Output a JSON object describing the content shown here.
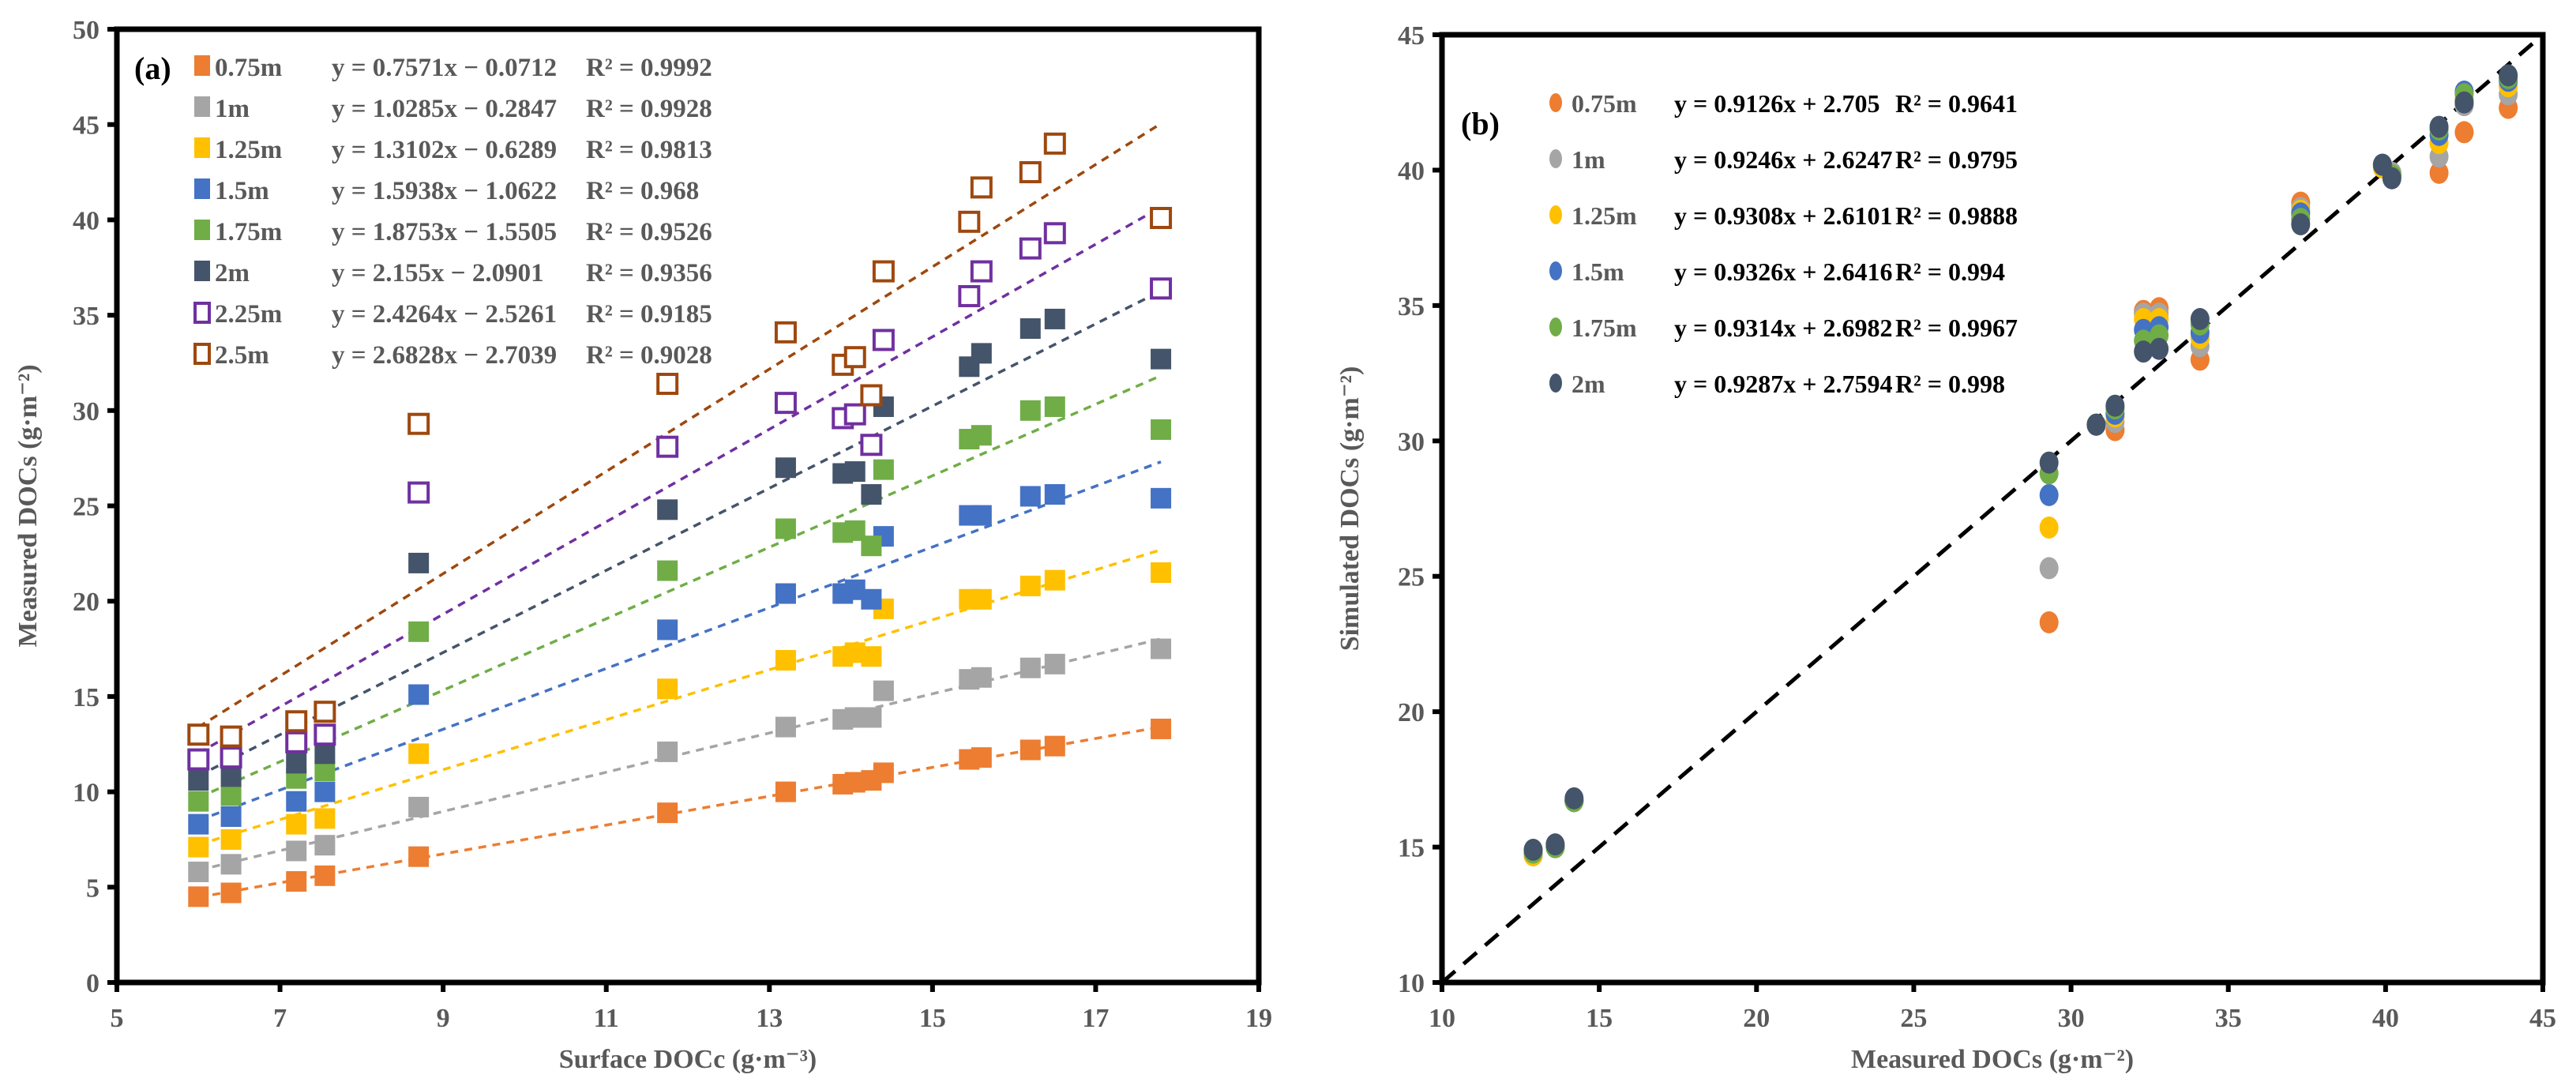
{
  "chart_data": [
    {
      "type": "scatter",
      "panel_label": "(a)",
      "xlabel": "Surface DOCc (g·m⁻³)",
      "ylabel": "Measured DOCs (g·m⁻²)",
      "xlim": [
        5,
        19
      ],
      "ylim": [
        0,
        50
      ],
      "xticks": [
        5,
        7,
        9,
        11,
        13,
        15,
        17,
        19
      ],
      "yticks": [
        0,
        5,
        10,
        15,
        20,
        25,
        30,
        35,
        40,
        45,
        50
      ],
      "grid": false,
      "legend_position": "top-left",
      "x": [
        6.0,
        6.4,
        7.2,
        7.55,
        8.7,
        11.75,
        13.2,
        13.9,
        14.05,
        14.25,
        14.4,
        15.45,
        15.6,
        16.2,
        16.5,
        17.8
      ],
      "series": [
        {
          "name": "0.75m",
          "color": "#ED7D31",
          "marker": "square-filled",
          "slope": 0.7571,
          "intercept": -0.0712,
          "equation": "y = 0.7571x − 0.0712",
          "r2": "R² = 0.9992",
          "values": [
            4.5,
            4.7,
            5.3,
            5.6,
            6.6,
            8.9,
            10.0,
            10.4,
            10.5,
            10.6,
            11.0,
            11.7,
            11.8,
            12.2,
            12.4,
            13.3
          ]
        },
        {
          "name": "1m",
          "color": "#A5A5A5",
          "marker": "square-filled",
          "slope": 1.0285,
          "intercept": -0.2847,
          "equation": "y = 1.0285x − 0.2847",
          "r2": "R² = 0.9928",
          "values": [
            5.8,
            6.2,
            6.9,
            7.2,
            9.2,
            12.1,
            13.4,
            13.8,
            13.9,
            13.9,
            15.3,
            15.9,
            16.0,
            16.5,
            16.7,
            17.5
          ]
        },
        {
          "name": "1.25m",
          "color": "#FFC000",
          "marker": "square-filled",
          "slope": 1.3102,
          "intercept": -0.6289,
          "equation": "y = 1.3102x − 0.6289",
          "r2": "R² = 0.9813",
          "values": [
            7.1,
            7.5,
            8.3,
            8.6,
            12.0,
            15.4,
            16.9,
            17.1,
            17.3,
            17.1,
            19.6,
            20.1,
            20.1,
            20.8,
            21.1,
            21.5
          ]
        },
        {
          "name": "1.5m",
          "color": "#4472C4",
          "marker": "square-filled",
          "slope": 1.5938,
          "intercept": -1.0622,
          "equation": "y = 1.5938x − 1.0622",
          "r2": "R² = 0.968",
          "values": [
            8.3,
            8.7,
            9.5,
            10.0,
            15.1,
            18.5,
            20.4,
            20.4,
            20.6,
            20.1,
            23.4,
            24.5,
            24.5,
            25.5,
            25.6,
            25.4
          ]
        },
        {
          "name": "1.75m",
          "color": "#70AD47",
          "marker": "square-filled",
          "slope": 1.8753,
          "intercept": -1.5505,
          "equation": "y = 1.8753x − 1.5505",
          "r2": "R² = 0.9526",
          "values": [
            9.5,
            9.8,
            10.7,
            11.1,
            18.4,
            21.6,
            23.8,
            23.6,
            23.7,
            22.9,
            26.9,
            28.5,
            28.7,
            30.0,
            30.2,
            29.0
          ]
        },
        {
          "name": "2m",
          "color": "#44546A",
          "marker": "square-filled",
          "slope": 2.155,
          "intercept": -2.0901,
          "equation": "y = 2.155x − 2.0901",
          "r2": "R² = 0.9356",
          "values": [
            10.6,
            10.8,
            11.5,
            12.0,
            22.0,
            24.8,
            27.0,
            26.7,
            26.8,
            25.6,
            30.2,
            32.3,
            33.0,
            34.3,
            34.8,
            32.7
          ]
        },
        {
          "name": "2.25m",
          "color": "#7030A0",
          "marker": "square-open",
          "slope": 2.4264,
          "intercept": -2.5261,
          "equation": "y = 2.4264x − 2.5261",
          "r2": "R² = 0.9185",
          "values": [
            11.7,
            11.8,
            12.6,
            13.0,
            25.7,
            28.1,
            30.4,
            29.6,
            29.8,
            28.2,
            33.7,
            36.0,
            37.3,
            38.5,
            39.3,
            36.4
          ]
        },
        {
          "name": "2.5m",
          "color": "#9E480E",
          "marker": "square-open",
          "slope": 2.6828,
          "intercept": -2.7039,
          "equation": "y = 2.6828x − 2.7039",
          "r2": "R² = 0.9028",
          "values": [
            13.0,
            12.9,
            13.7,
            14.2,
            29.3,
            31.4,
            34.1,
            32.4,
            32.8,
            30.8,
            37.3,
            39.9,
            41.7,
            42.5,
            44.0,
            40.1
          ]
        }
      ]
    },
    {
      "type": "scatter",
      "panel_label": "(b)",
      "xlabel": "Measured DOCs (g·m⁻²)",
      "ylabel": "Simulated DOCs (g·m⁻²)",
      "xlim": [
        10,
        45
      ],
      "ylim": [
        10,
        45
      ],
      "xticks": [
        10,
        15,
        20,
        25,
        30,
        35,
        40,
        45
      ],
      "yticks": [
        10,
        15,
        20,
        25,
        30,
        35,
        40,
        45
      ],
      "grid": false,
      "legend_position": "top-left",
      "reference_line": "1:1",
      "x": [
        12.9,
        13.6,
        14.2,
        29.3,
        30.8,
        31.4,
        32.3,
        32.8,
        34.1,
        37.3,
        39.9,
        40.2,
        41.7,
        42.5,
        43.9
      ],
      "series": [
        {
          "name": "0.75m",
          "color": "#ED7D31",
          "equation": "y = 0.9126x + 2.705",
          "r2": "R² = 0.9641",
          "values": [
            14.7,
            15.0,
            16.7,
            23.3,
            30.6,
            30.4,
            34.8,
            34.9,
            33.0,
            38.8,
            40.1,
            39.9,
            39.9,
            41.4,
            42.3
          ]
        },
        {
          "name": "1m",
          "color": "#A5A5A5",
          "equation": "y = 0.9246x + 2.6247",
          "r2": "R² = 0.9795",
          "values": [
            14.7,
            15.0,
            16.7,
            25.3,
            30.6,
            30.7,
            34.7,
            34.7,
            33.5,
            38.6,
            40.1,
            39.9,
            40.5,
            42.4,
            42.8
          ]
        },
        {
          "name": "1.25m",
          "color": "#FFC000",
          "equation": "y = 0.9308x + 2.6101",
          "r2": "R² = 0.9888",
          "values": [
            14.7,
            15.0,
            16.7,
            26.8,
            30.6,
            30.9,
            34.5,
            34.5,
            33.8,
            38.5,
            40.1,
            39.8,
            41.0,
            42.6,
            43.1
          ]
        },
        {
          "name": "1.5m",
          "color": "#4472C4",
          "equation": "y = 0.9326x + 2.6416",
          "r2": "R² = 0.994",
          "values": [
            14.8,
            15.0,
            16.7,
            28.0,
            30.6,
            31.0,
            34.1,
            34.2,
            34.0,
            38.4,
            40.2,
            39.8,
            41.3,
            42.9,
            43.3
          ]
        },
        {
          "name": "1.75m",
          "color": "#70AD47",
          "equation": "y = 0.9314x + 2.6982",
          "r2": "R² = 0.9967",
          "values": [
            14.8,
            15.0,
            16.7,
            28.8,
            30.6,
            31.2,
            33.7,
            33.9,
            34.3,
            38.2,
            40.2,
            39.8,
            41.5,
            42.8,
            43.4
          ]
        },
        {
          "name": "2m",
          "color": "#44546A",
          "equation": "y = 0.9287x + 2.7594",
          "r2": "R² = 0.998",
          "values": [
            14.9,
            15.1,
            16.8,
            29.2,
            30.6,
            31.3,
            33.3,
            33.4,
            34.5,
            38.0,
            40.2,
            39.7,
            41.6,
            42.5,
            43.5
          ]
        }
      ]
    }
  ]
}
